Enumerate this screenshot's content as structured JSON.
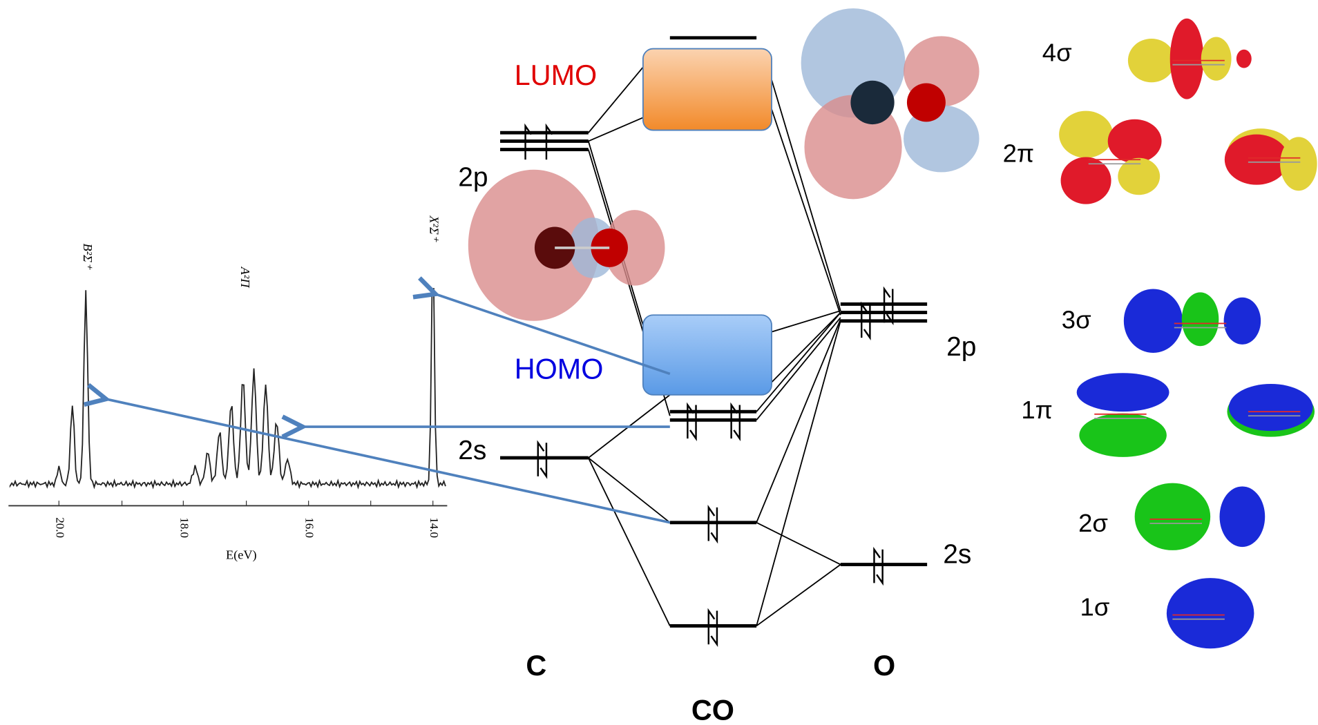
{
  "labels": {
    "lumo": "LUMO",
    "homo": "HOMO",
    "c_2p": "2p",
    "c_2s": "2s",
    "o_2p": "2p",
    "o_2s": "2s",
    "carbon": "C",
    "oxygen": "O",
    "molecule": "CO"
  },
  "spectrum": {
    "peaks": [
      "B²Σ⁺",
      "A²Π",
      "X²Σ⁺"
    ],
    "ticks": [
      "20.0",
      "18.0",
      "16.0",
      "14.0"
    ],
    "axis_label": "E(eV)"
  },
  "orbitals": [
    "4σ",
    "2π",
    "3σ",
    "1π",
    "2σ",
    "1σ"
  ]
}
